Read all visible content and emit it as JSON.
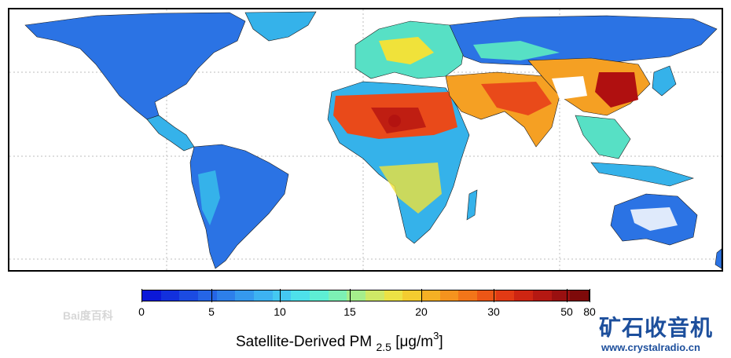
{
  "map": {
    "title": "Satellite-Derived PM2.5",
    "colors": {
      "ocean": "#ffffff",
      "very_low": "#1538d6",
      "low": "#2b73e4",
      "mid_low": "#35b2ea",
      "mid": "#57e0c5",
      "mid_high": "#f0e23a",
      "high": "#f5a023",
      "very_high": "#e94a1a",
      "extreme": "#b01010",
      "snow": "#ffffff",
      "border": "#1a1a1a",
      "grid": "#bdbdbd"
    }
  },
  "colorbar": {
    "tick_labels": [
      "0",
      "5",
      "10",
      "15",
      "20",
      "30",
      "50",
      "80"
    ],
    "title_main": "Satellite-Derived PM",
    "title_sub": "2.5",
    "unit_prefix": "[μg/m",
    "unit_sup": "3",
    "unit_suffix": "]",
    "segment_colors": [
      "#0b18d8",
      "#1230dd",
      "#1b4be2",
      "#2565e6",
      "#2d7fea",
      "#3599ee",
      "#3db2f1",
      "#44c8f1",
      "#4ee0ea",
      "#5eeed4",
      "#7df0b4",
      "#a5ee8c",
      "#cfe966",
      "#ece245",
      "#f4cc30",
      "#f5b024",
      "#f5931e",
      "#f27519",
      "#ec5616",
      "#e23a14",
      "#ce2512",
      "#b51812",
      "#9a1010",
      "#7e0a0a"
    ]
  },
  "watermarks": {
    "left_text": "Bai度百科",
    "brand": "矿石收音机",
    "url": "www.crystalradio.cn"
  }
}
